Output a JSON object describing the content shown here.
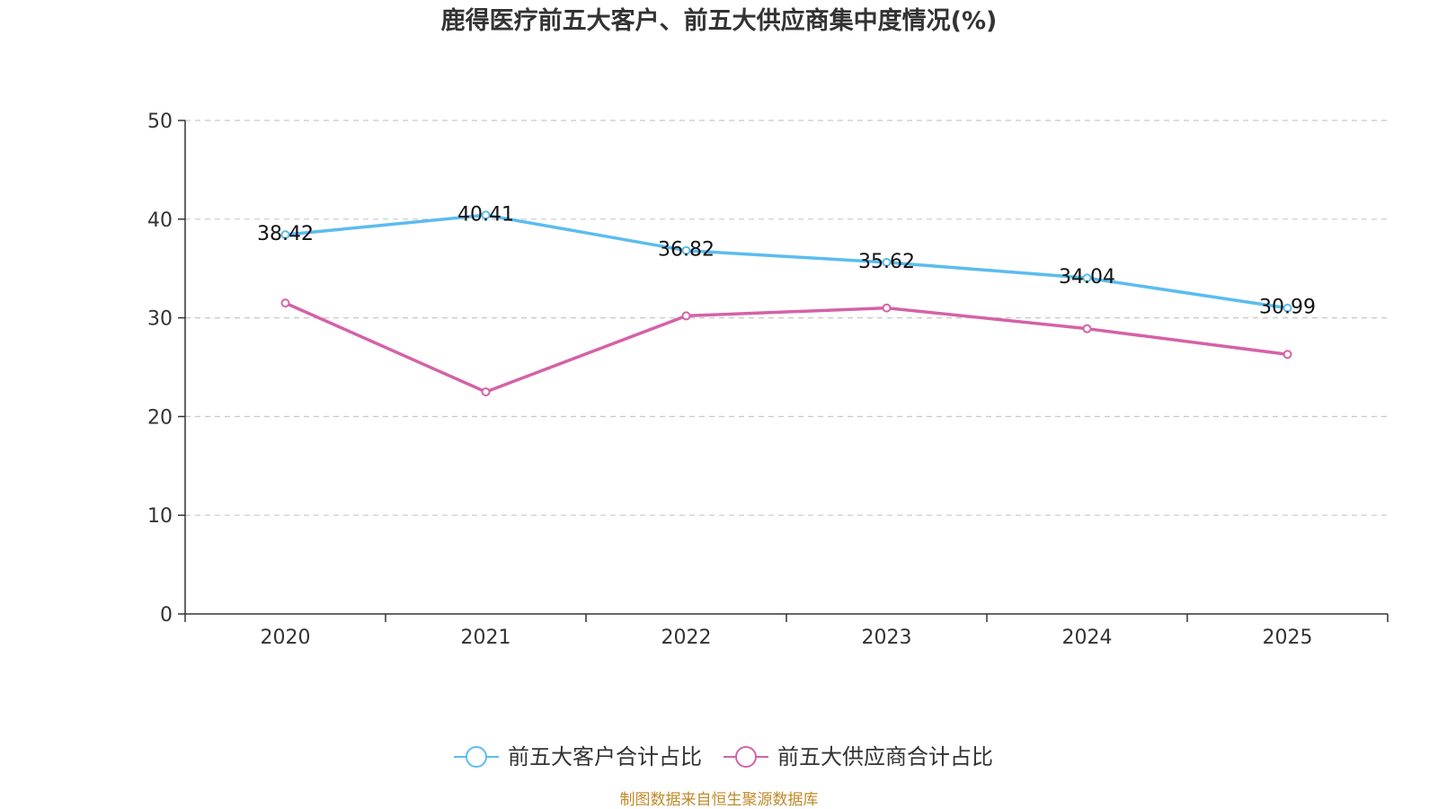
{
  "chart_data": {
    "type": "line",
    "title": "鹿得医疗前五大客户、前五大供应商集中度情况(%)",
    "categories": [
      "2020",
      "2021",
      "2022",
      "2023",
      "2024",
      "2025"
    ],
    "y_ticks": [
      "0",
      "10",
      "20",
      "30",
      "40",
      "50"
    ],
    "ylim": [
      0,
      50
    ],
    "grid": true,
    "legend_position": "bottom-center",
    "series": [
      {
        "name": "前五大客户合计占比",
        "color": "#5bbcef",
        "values": [
          38.42,
          40.41,
          36.82,
          35.62,
          34.04,
          30.99
        ],
        "labels": [
          "38.42",
          "40.41",
          "36.82",
          "35.62",
          "34.04",
          "30.99"
        ],
        "show_labels": true
      },
      {
        "name": "前五大供应商合计占比",
        "color": "#d462a8",
        "values": [
          31.5,
          22.5,
          30.2,
          31.0,
          28.9,
          26.3
        ],
        "show_labels": false
      }
    ]
  },
  "footer": {
    "source": "制图数据来自恒生聚源数据库"
  }
}
